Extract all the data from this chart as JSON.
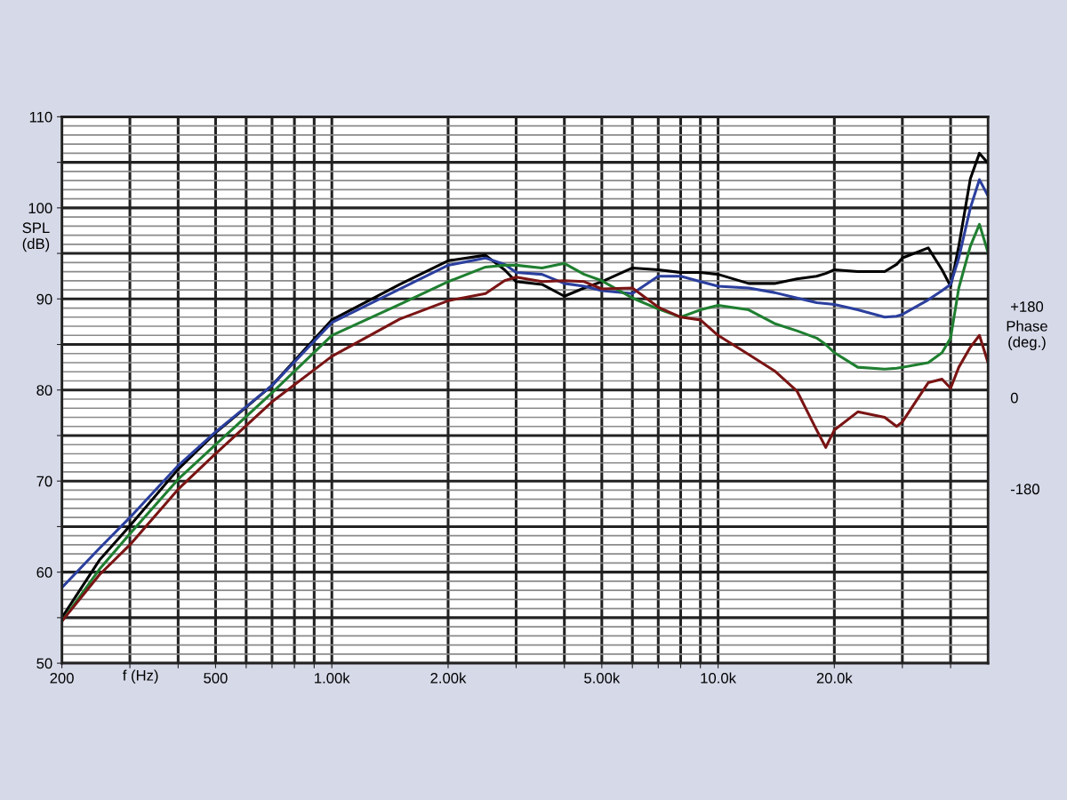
{
  "chart_data": {
    "type": "line",
    "xlabel": "f (Hz)",
    "ylabel": "SPL\n(dB)",
    "y2label": "Phase\n(deg.)",
    "log": "x",
    "x": [
      200,
      250,
      300,
      400,
      500,
      700,
      1000,
      1500,
      2000,
      2500,
      2800,
      3000,
      3500,
      4000,
      4500,
      5000,
      6000,
      7000,
      8000,
      9000,
      10000,
      12000,
      14000,
      16000,
      18000,
      19000,
      20000,
      23000,
      27000,
      29000,
      30000,
      35000,
      38000,
      40000,
      42000,
      45000,
      47500,
      50000
    ],
    "series": [
      {
        "color": "#000000",
        "values": [
          55.0,
          61.3,
          65.1,
          71.3,
          75.3,
          80.5,
          87.7,
          91.6,
          94.2,
          94.8,
          93.2,
          91.9,
          91.6,
          90.3,
          91.2,
          91.9,
          93.4,
          93.2,
          92.9,
          92.9,
          92.7,
          91.7,
          91.7,
          92.2,
          92.5,
          92.8,
          93.2,
          93.0,
          93.0,
          93.8,
          94.5,
          95.6,
          93.2,
          91.4,
          95.8,
          103.2,
          106.0,
          104.9
        ]
      },
      {
        "color": "#2b3f9e",
        "values": [
          58.3,
          62.6,
          66.0,
          71.7,
          75.4,
          80.5,
          87.4,
          91.1,
          93.7,
          94.5,
          93.8,
          92.9,
          92.7,
          91.7,
          91.4,
          90.9,
          90.6,
          92.5,
          92.5,
          91.9,
          91.4,
          91.2,
          90.7,
          90.1,
          89.6,
          89.5,
          89.4,
          88.8,
          88.0,
          88.1,
          88.3,
          89.9,
          90.9,
          91.6,
          94.5,
          100.0,
          103.1,
          101.3
        ]
      },
      {
        "color": "#1f7f30",
        "values": [
          54.6,
          60.3,
          64.2,
          70.2,
          74.0,
          79.7,
          86.0,
          89.4,
          91.9,
          93.5,
          93.7,
          93.7,
          93.4,
          93.9,
          92.7,
          92.0,
          90.1,
          88.9,
          88.0,
          88.8,
          89.3,
          88.8,
          87.3,
          86.5,
          85.7,
          85.0,
          84.1,
          82.5,
          82.3,
          82.4,
          82.5,
          83.0,
          84.1,
          85.7,
          91.2,
          95.8,
          98.2,
          95.1
        ]
      },
      {
        "color": "#7a1414",
        "values": [
          54.6,
          59.7,
          63.0,
          69.1,
          73.0,
          78.7,
          83.7,
          87.8,
          89.8,
          90.6,
          92.0,
          92.4,
          91.9,
          92.0,
          91.9,
          91.1,
          91.2,
          89.1,
          88.0,
          87.7,
          86.0,
          83.9,
          82.1,
          79.9,
          75.6,
          73.7,
          75.6,
          77.6,
          77.0,
          76.0,
          76.5,
          80.8,
          81.2,
          80.2,
          82.5,
          84.7,
          86.0,
          83.0
        ]
      }
    ],
    "xlim": [
      200,
      50000
    ],
    "xticks": [
      200,
      {
        "value": 300,
        "label": null
      },
      {
        "value": 400,
        "label": null
      },
      500,
      {
        "value": 600,
        "label": null
      },
      {
        "value": 700,
        "label": null
      },
      {
        "value": 800,
        "label": null
      },
      {
        "value": 900,
        "label": null
      },
      {
        "value": 1000,
        "label": "1.00k"
      },
      {
        "value": 2000,
        "label": "2.00k"
      },
      {
        "value": 3000,
        "label": null
      },
      {
        "value": 4000,
        "label": null
      },
      {
        "value": 5000,
        "label": "5.00k"
      },
      {
        "value": 6000,
        "label": null
      },
      {
        "value": 7000,
        "label": null
      },
      {
        "value": 8000,
        "label": null
      },
      {
        "value": 9000,
        "label": null
      },
      {
        "value": 10000,
        "label": "10.0k"
      },
      {
        "value": 20000,
        "label": "20.0k"
      },
      {
        "value": 30000,
        "label": null
      },
      {
        "value": 40000,
        "label": null
      }
    ],
    "ylim": [
      50,
      110
    ],
    "yticks": [
      50,
      {
        "value": 55,
        "label": null
      },
      60,
      {
        "value": 65,
        "label": null
      },
      70,
      {
        "value": 75,
        "label": null
      },
      80,
      {
        "value": 85,
        "label": null
      },
      90,
      {
        "value": 95,
        "label": null
      },
      100,
      {
        "value": 105,
        "label": null
      },
      110
    ],
    "y2lim": [
      -524,
      554
    ],
    "y2ticks": [
      -180,
      0,
      {
        "value": 180,
        "label": "+180"
      }
    ],
    "grid": true,
    "marker": "none",
    "line_style": "solid"
  }
}
